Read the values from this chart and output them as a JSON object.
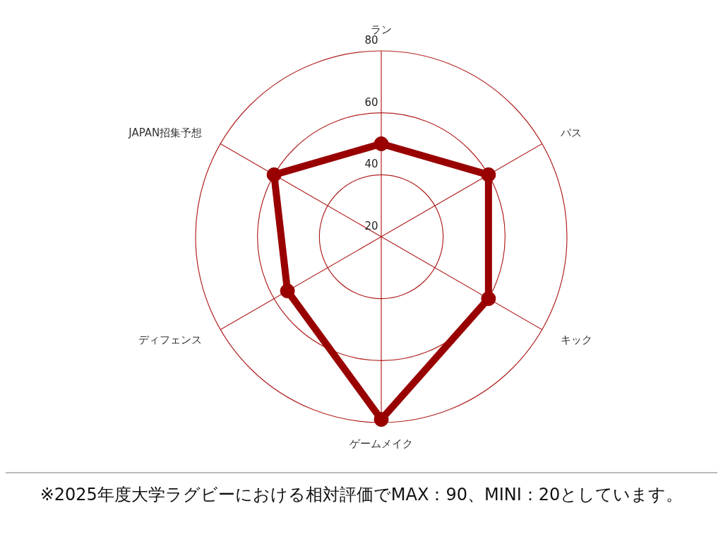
{
  "chart_data": {
    "type": "radar",
    "categories": [
      "ラン",
      "パス",
      "キック",
      "ゲームメイク",
      "ディフェンス",
      "JAPAN招集予想"
    ],
    "series": [
      {
        "color": "#990000",
        "values": [
          50,
          60,
          60,
          79,
          55,
          60
        ]
      }
    ],
    "ylim": [
      20,
      80
    ],
    "yticks": [
      20,
      40,
      60,
      80
    ],
    "grid": true,
    "marker": "circle",
    "legend": false,
    "annotations": [
      "※2025年度大学ラグビーにおける相対評価でMAX：90、MINI：20としています。"
    ]
  }
}
